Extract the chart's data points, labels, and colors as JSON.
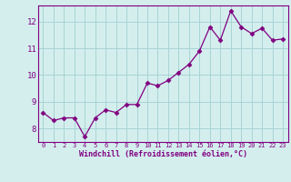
{
  "x": [
    0,
    1,
    2,
    3,
    4,
    5,
    6,
    7,
    8,
    9,
    10,
    11,
    12,
    13,
    14,
    15,
    16,
    17,
    18,
    19,
    20,
    21,
    22,
    23
  ],
  "y": [
    8.6,
    8.3,
    8.4,
    8.4,
    7.7,
    8.4,
    8.7,
    8.6,
    8.9,
    8.9,
    9.7,
    9.6,
    9.8,
    10.1,
    10.4,
    10.9,
    11.8,
    11.3,
    12.4,
    11.8,
    11.55,
    11.75,
    11.3,
    11.35
  ],
  "line_color": "#800080",
  "marker": "D",
  "marker_size": 2.5,
  "bg_color": "#d4eeee",
  "grid_color": "#a8d4d4",
  "xlabel": "Windchill (Refroidissement éolien,°C)",
  "xlabel_color": "#800080",
  "tick_color": "#800080",
  "spine_color": "#800080",
  "ylim": [
    7.5,
    12.6
  ],
  "xlim": [
    -0.5,
    23.5
  ],
  "yticks": [
    8,
    9,
    10,
    11,
    12
  ],
  "xticks": [
    0,
    1,
    2,
    3,
    4,
    5,
    6,
    7,
    8,
    9,
    10,
    11,
    12,
    13,
    14,
    15,
    16,
    17,
    18,
    19,
    20,
    21,
    22,
    23
  ],
  "ytick_fontsize": 6.5,
  "xtick_fontsize": 5.0,
  "xlabel_fontsize": 6.0
}
